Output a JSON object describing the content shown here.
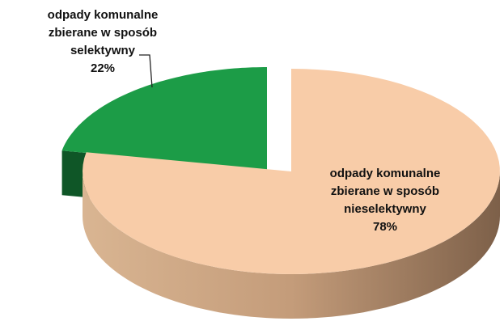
{
  "chart_data": {
    "type": "pie3d",
    "categories": [
      "odpady komunalne zbierane w sposób nieselektywny",
      "odpady komunalne zbierane w sposób selektywny"
    ],
    "values": [
      78,
      22
    ],
    "value_labels": [
      "78%",
      "22%"
    ],
    "colors": [
      "#f8cca8",
      "#1c9c47"
    ]
  }
}
